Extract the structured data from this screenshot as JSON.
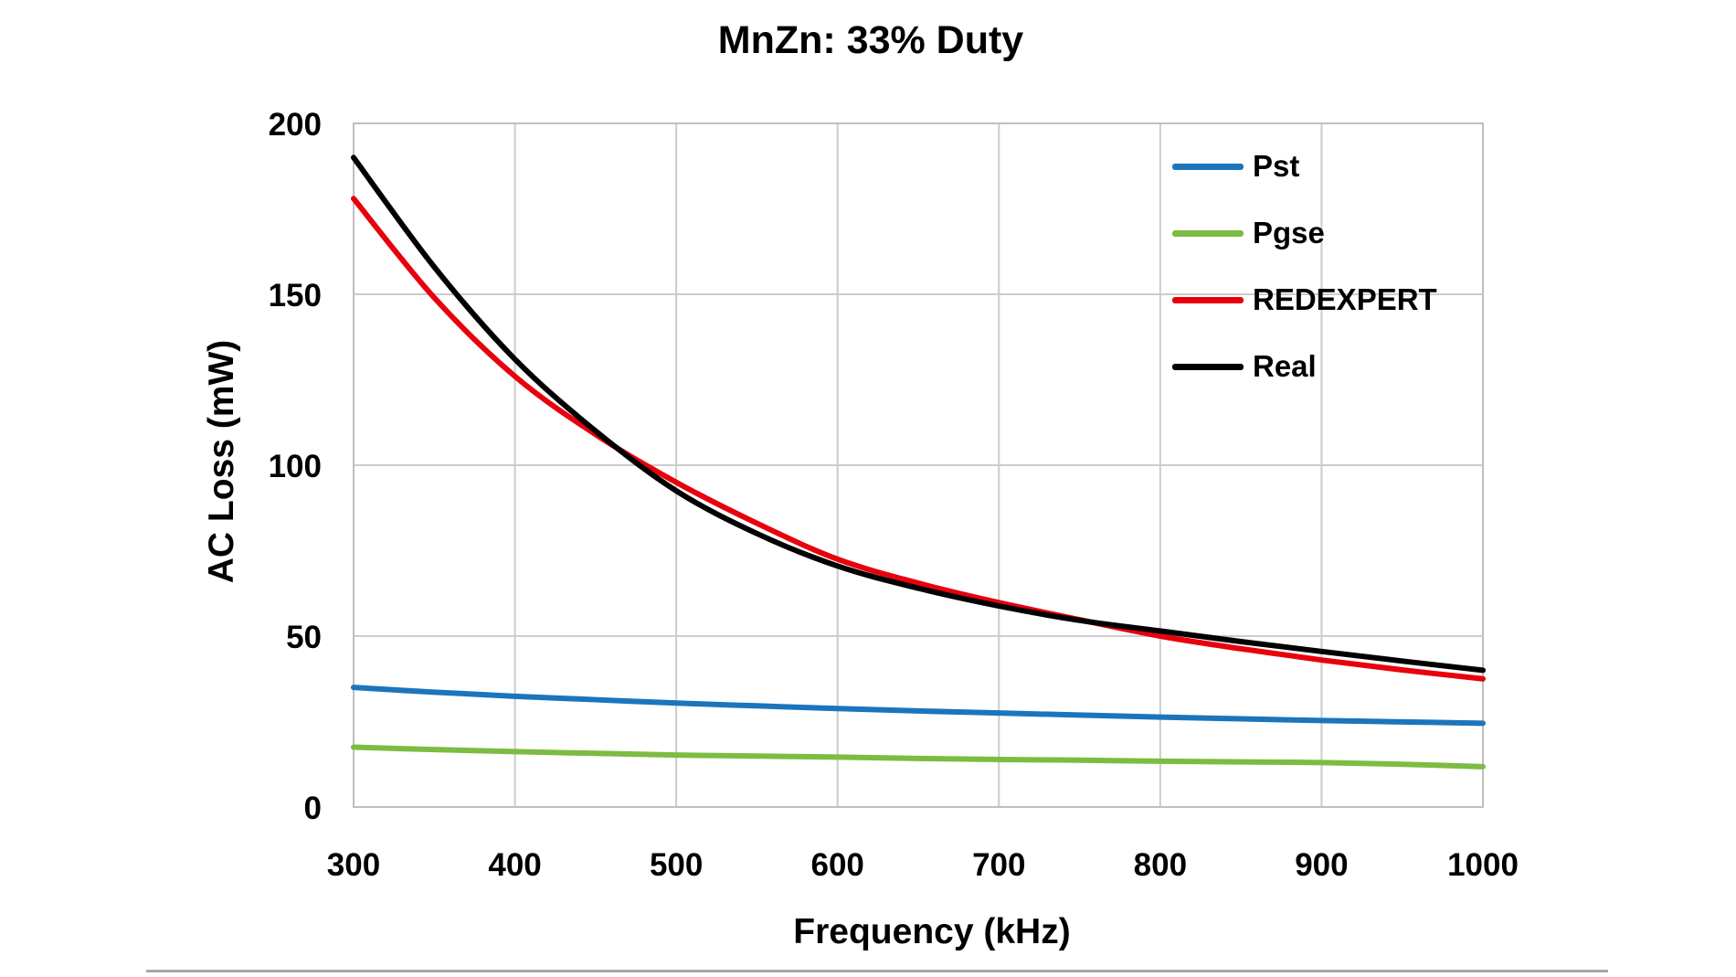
{
  "chart_data": {
    "type": "line",
    "title": "MnZn: 33% Duty",
    "xlabel": "Frequency (kHz)",
    "ylabel": "AC Loss (mW)",
    "xlim": [
      300,
      1000
    ],
    "ylim": [
      0,
      200
    ],
    "xticks": [
      300,
      400,
      500,
      600,
      700,
      800,
      900,
      1000
    ],
    "yticks": [
      0,
      50,
      100,
      150,
      200
    ],
    "grid": true,
    "legend_position": "top-right-inside",
    "x": [
      300,
      350,
      400,
      450,
      500,
      550,
      600,
      650,
      700,
      750,
      800,
      850,
      900,
      950,
      1000
    ],
    "series": [
      {
        "name": "Pst",
        "color": "#1B75BC",
        "values": [
          35,
          33.6,
          32.4,
          31.4,
          30.4,
          29.6,
          28.8,
          28.1,
          27.5,
          26.9,
          26.3,
          25.8,
          25.3,
          24.9,
          24.5
        ]
      },
      {
        "name": "Pgse",
        "color": "#7DBB42",
        "values": [
          17.5,
          16.8,
          16.2,
          15.7,
          15.2,
          14.9,
          14.6,
          14.2,
          13.9,
          13.7,
          13.4,
          13.2,
          13.0,
          12.5,
          11.8
        ]
      },
      {
        "name": "REDEXPERT",
        "color": "#E8000D",
        "values": [
          178,
          149,
          126,
          109,
          95,
          83,
          72.5,
          65.5,
          59.8,
          54.8,
          50,
          46.3,
          43,
          40.1,
          37.5
        ]
      },
      {
        "name": "Real",
        "color": "#000000",
        "values": [
          190,
          158,
          131,
          110,
          92.5,
          80,
          70.5,
          64,
          58.8,
          54.6,
          51.5,
          48.4,
          45.5,
          42.7,
          40
        ]
      }
    ],
    "colors": {
      "gridline": "#cccccc",
      "plot_border": "#bfbfbf",
      "text": "#000000"
    }
  }
}
